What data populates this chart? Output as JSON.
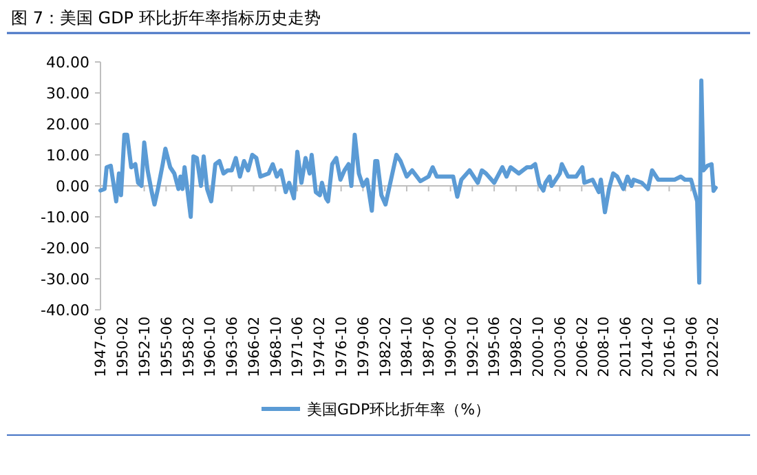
{
  "chart_data": {
    "type": "line",
    "title": "图 7：美国 GDP 环比折年率指标历史走势",
    "x": [
      "1947-06",
      "1947-12",
      "1948-03",
      "1948-09",
      "1949-05",
      "1949-09",
      "1949-12",
      "1950-05",
      "1950-09",
      "1951-03",
      "1951-09",
      "1952-01",
      "1952-06",
      "1952-10",
      "1953-03",
      "1953-09",
      "1954-01",
      "1954-06",
      "1955-01",
      "1955-05",
      "1955-12",
      "1956-06",
      "1956-12",
      "1957-03",
      "1957-06",
      "1957-09",
      "1958-01",
      "1958-06",
      "1958-10",
      "1959-03",
      "1959-09",
      "1960-01",
      "1960-06",
      "1960-12",
      "1961-06",
      "1961-12",
      "1962-06",
      "1962-12",
      "1963-06",
      "1963-12",
      "1964-06",
      "1964-12",
      "1965-06",
      "1965-12",
      "1966-06",
      "1966-12",
      "1967-06",
      "1967-12",
      "1968-06",
      "1968-12",
      "1969-06",
      "1970-01",
      "1970-06",
      "1971-01",
      "1971-06",
      "1971-12",
      "1972-06",
      "1972-12",
      "1973-03",
      "1973-09",
      "1974-03",
      "1974-06",
      "1974-12",
      "1975-03",
      "1975-09",
      "1976-03",
      "1976-09",
      "1977-03",
      "1977-09",
      "1978-01",
      "1978-06",
      "1978-12",
      "1979-06",
      "1979-12",
      "1980-07",
      "1980-12",
      "1981-03",
      "1981-09",
      "1982-03",
      "1982-09",
      "1983-07",
      "1984-01",
      "1984-10",
      "1985-06",
      "1986-06",
      "1987-06",
      "1987-12",
      "1988-06",
      "1989-06",
      "1990-06",
      "1990-12",
      "1991-06",
      "1992-06",
      "1993-06",
      "1993-12",
      "1994-06",
      "1995-06",
      "1996-06",
      "1996-12",
      "1997-06",
      "1998-06",
      "1999-06",
      "1999-12",
      "2000-06",
      "2000-12",
      "2001-06",
      "2001-09",
      "2002-03",
      "2002-06",
      "2003-06",
      "2003-09",
      "2004-06",
      "2005-06",
      "2006-03",
      "2006-06",
      "2007-06",
      "2008-03",
      "2008-06",
      "2008-12",
      "2009-06",
      "2009-12",
      "2010-06",
      "2011-03",
      "2011-09",
      "2012-03",
      "2012-06",
      "2013-06",
      "2014-03",
      "2014-09",
      "2015-06",
      "2016-06",
      "2017-06",
      "2018-03",
      "2018-09",
      "2019-06",
      "2020-03",
      "2020-06",
      "2020-09",
      "2020-12",
      "2021-06",
      "2021-12",
      "2022-03",
      "2022-06"
    ],
    "series": [
      {
        "name": "美国GDP环比折年率（%）",
        "color": "#5b9bd5",
        "values": [
          -1.5,
          -1,
          6,
          6.5,
          -5,
          4,
          -3,
          16.5,
          16.5,
          6,
          7,
          1,
          0,
          14,
          5,
          -2,
          -6,
          -1,
          7,
          12,
          6,
          4,
          -1,
          3,
          -1,
          6,
          -1,
          -10,
          9.5,
          9,
          0,
          9.5,
          -1,
          -5,
          7,
          8,
          4,
          5,
          5,
          9,
          3,
          8,
          5,
          10,
          9,
          3,
          3.5,
          4,
          7,
          3,
          5,
          -2,
          1,
          -4,
          11,
          1,
          9,
          4,
          10,
          -2,
          -3,
          1,
          -4,
          -5,
          7,
          9,
          2,
          5,
          7,
          0,
          16.5,
          4,
          0,
          2,
          -8,
          8,
          8,
          -3,
          -6,
          0,
          10,
          8,
          3,
          5,
          1.5,
          3,
          6,
          3,
          3,
          3,
          -3.5,
          2,
          5,
          1,
          5,
          4,
          1,
          6,
          3,
          6,
          4,
          6,
          6,
          7,
          0.5,
          -1.5,
          1,
          3,
          0,
          4,
          7,
          3,
          3,
          6,
          1,
          2,
          -2,
          2,
          -8.5,
          -1,
          4,
          3,
          -1,
          3,
          0,
          2,
          1,
          -1,
          5,
          2,
          2,
          2,
          3,
          2,
          2,
          -5,
          -31.2,
          34,
          5,
          6.5,
          7,
          -1.6,
          -0.6
        ]
      }
    ],
    "xlim": [
      "1947-06",
      "2022-06"
    ],
    "xticks": [
      "1947-06",
      "1950-02",
      "1952-10",
      "1955-06",
      "1958-02",
      "1960-10",
      "1963-06",
      "1966-02",
      "1968-10",
      "1971-06",
      "1974-02",
      "1976-10",
      "1979-06",
      "1982-02",
      "1984-10",
      "1987-06",
      "1990-02",
      "1992-10",
      "1995-06",
      "1998-02",
      "2000-10",
      "2003-06",
      "2006-02",
      "2008-10",
      "2011-06",
      "2014-02",
      "2016-10",
      "2019-06",
      "2022-02"
    ],
    "ylim": [
      -40,
      40
    ],
    "yticks": [
      {
        "value": -40,
        "label": "-40.00"
      },
      {
        "value": -30,
        "label": "-30.00"
      },
      {
        "value": -20,
        "label": "-20.00"
      },
      {
        "value": -10,
        "label": "-10.00"
      },
      {
        "value": 0,
        "label": "0.00"
      },
      {
        "value": 10,
        "label": "10.00"
      },
      {
        "value": 20,
        "label": "20.00"
      },
      {
        "value": 30,
        "label": "30.00"
      },
      {
        "value": 40,
        "label": "40.00"
      }
    ],
    "legend": "bottom",
    "line_style": "solid",
    "marker": "none"
  }
}
